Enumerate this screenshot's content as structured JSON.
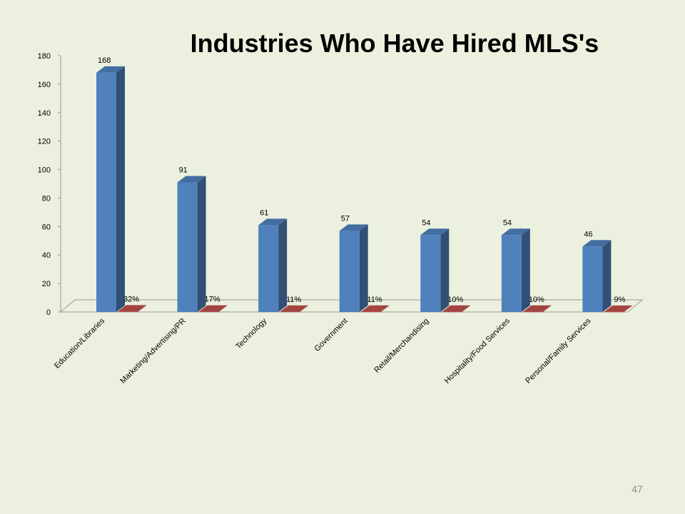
{
  "chart_data": {
    "type": "bar3d",
    "title": "Industries Who Have Hired MLS's",
    "categories": [
      "Education/Libraries",
      "Marketing/Advertising/PR",
      "Technology",
      "Government",
      "Retail/Merchandising",
      "Hospitality/Food Services",
      "Personal/Family Services"
    ],
    "series": [
      {
        "color": "#4f81bd",
        "values": [
          168,
          91,
          61,
          57,
          54,
          54,
          46
        ]
      },
      {
        "color": "#c0504d",
        "values": [
          0.32,
          0.17,
          0.11,
          0.11,
          0.1,
          0.1,
          0.09
        ],
        "value_labels": [
          "32%",
          "17%",
          "11%",
          "11%",
          "10%",
          "10%",
          "9%"
        ]
      }
    ],
    "ylim": [
      0,
      180
    ],
    "yticks": [
      0,
      20,
      40,
      60,
      80,
      100,
      120,
      140,
      160,
      180
    ]
  },
  "page_number": "47"
}
